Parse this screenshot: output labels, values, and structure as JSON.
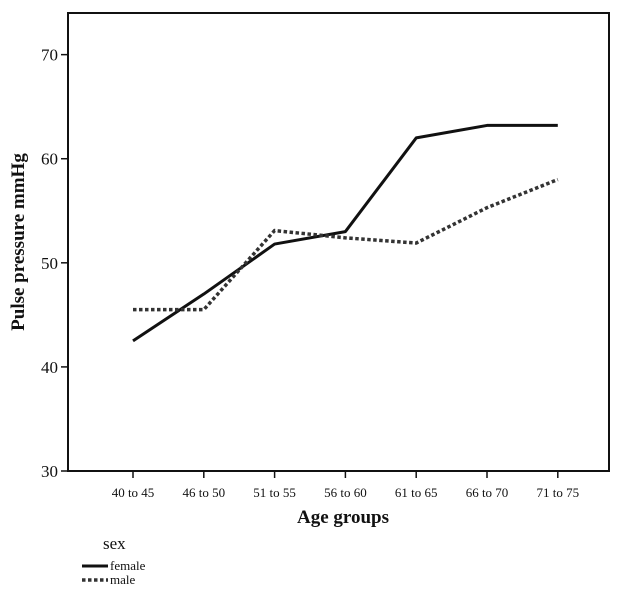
{
  "chart_data": {
    "type": "line",
    "title": "",
    "xlabel": "Age groups",
    "ylabel": "Pulse pressure mmHg",
    "ylim": [
      30,
      74
    ],
    "yticks": [
      30,
      40,
      50,
      60,
      70
    ],
    "categories": [
      "40 to 45",
      "46 to 50",
      "51 to 55",
      "56 to 60",
      "61 to 65",
      "66 to 70",
      "71 to 75"
    ],
    "series": [
      {
        "name": "female",
        "style": "solid",
        "color": "#111111",
        "values": [
          42.5,
          47.0,
          51.8,
          53.0,
          62.0,
          63.2,
          63.2
        ]
      },
      {
        "name": "male",
        "style": "dotted",
        "color": "#333333",
        "values": [
          45.5,
          45.5,
          53.1,
          52.4,
          51.9,
          55.3,
          58.0
        ]
      }
    ],
    "grid": false,
    "legend": {
      "title": "sex",
      "position": "bottom-left"
    }
  }
}
